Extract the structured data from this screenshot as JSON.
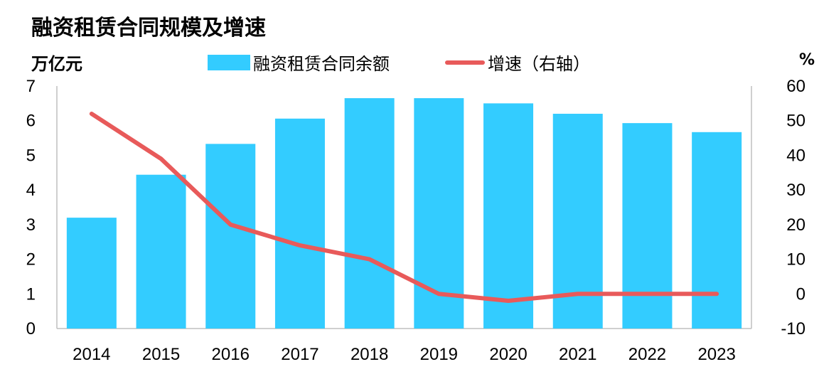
{
  "chart_data": {
    "type": "bar+line",
    "title": "融资租赁合同规模及增速",
    "y_left_unit": "万亿元",
    "y_right_unit": "%",
    "categories": [
      "2014",
      "2015",
      "2016",
      "2017",
      "2018",
      "2019",
      "2020",
      "2021",
      "2022",
      "2023"
    ],
    "series": [
      {
        "name": "融资租赁合同余额",
        "type": "bar",
        "axis": "left",
        "color": "#33ccff",
        "values": [
          3.2,
          4.44,
          5.33,
          6.06,
          6.65,
          6.65,
          6.5,
          6.2,
          5.93,
          5.67
        ]
      },
      {
        "name": "增速（右轴）",
        "type": "line",
        "axis": "right",
        "color": "#e85a5a",
        "values": [
          52,
          39,
          20,
          14,
          10,
          0,
          -2,
          0,
          0,
          0
        ]
      }
    ],
    "y_left": {
      "min": 0,
      "max": 7,
      "ticks": [
        "0",
        "1",
        "2",
        "3",
        "4",
        "5",
        "6",
        "7"
      ]
    },
    "y_right": {
      "min": -10,
      "max": 60,
      "ticks": [
        "-10",
        "0",
        "10",
        "20",
        "30",
        "40",
        "50",
        "60"
      ]
    },
    "grid": false,
    "legend_position": "top-center"
  }
}
